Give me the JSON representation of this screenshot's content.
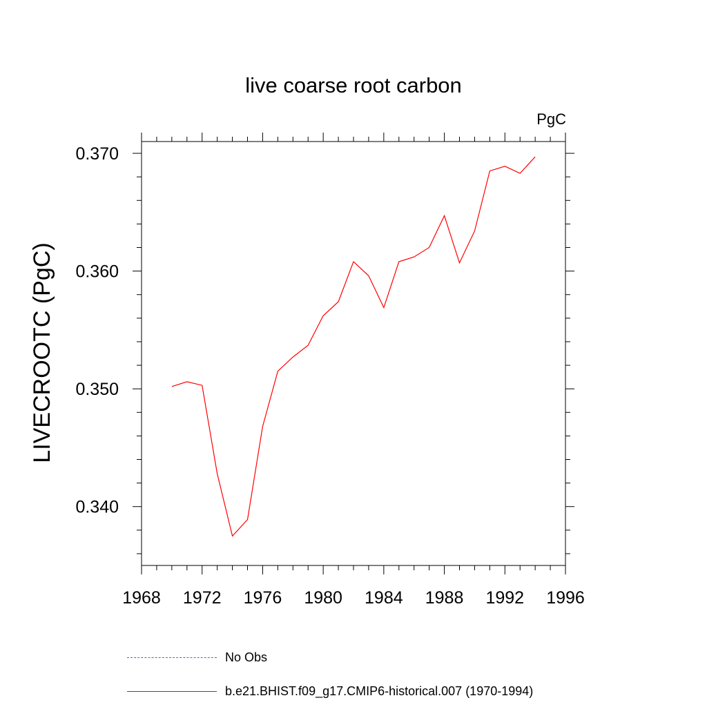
{
  "chart_data": {
    "type": "line",
    "title": "live coarse root carbon",
    "units_label": "PgC",
    "ylabel": "LIVECROOTC  (PgC)",
    "xlim": [
      1968,
      1996
    ],
    "ylim": [
      0.335,
      0.371
    ],
    "xticks": [
      1968,
      1972,
      1976,
      1980,
      1984,
      1988,
      1992,
      1996
    ],
    "yticks": [
      0.34,
      0.35,
      0.36,
      0.37
    ],
    "ytick_labels": [
      "0.340",
      "0.350",
      "0.360",
      "0.370"
    ],
    "series": [
      {
        "name": "b.e21.BHIST.f09_g17.CMIP6-historical.007 (1970-1994)",
        "color": "#ff0000",
        "x": [
          1970,
          1971,
          1972,
          1973,
          1974,
          1975,
          1976,
          1977,
          1978,
          1979,
          1980,
          1981,
          1982,
          1983,
          1984,
          1985,
          1986,
          1987,
          1988,
          1989,
          1990,
          1991,
          1992,
          1993,
          1994
        ],
        "y": [
          0.3502,
          0.3506,
          0.3503,
          0.3428,
          0.3375,
          0.3389,
          0.3468,
          0.3515,
          0.3527,
          0.3537,
          0.3562,
          0.3574,
          0.3608,
          0.3596,
          0.3569,
          0.3608,
          0.3612,
          0.362,
          0.3647,
          0.3607,
          0.3634,
          0.3685,
          0.3689,
          0.3683,
          0.3697
        ]
      }
    ]
  },
  "legend": [
    {
      "label": "No Obs",
      "color": "#6a5acd",
      "style": "dashed"
    },
    {
      "label": "b.e21.BHIST.f09_g17.CMIP6-historical.007 (1970-1994)",
      "color": "#ff0000",
      "style": "solid"
    }
  ]
}
